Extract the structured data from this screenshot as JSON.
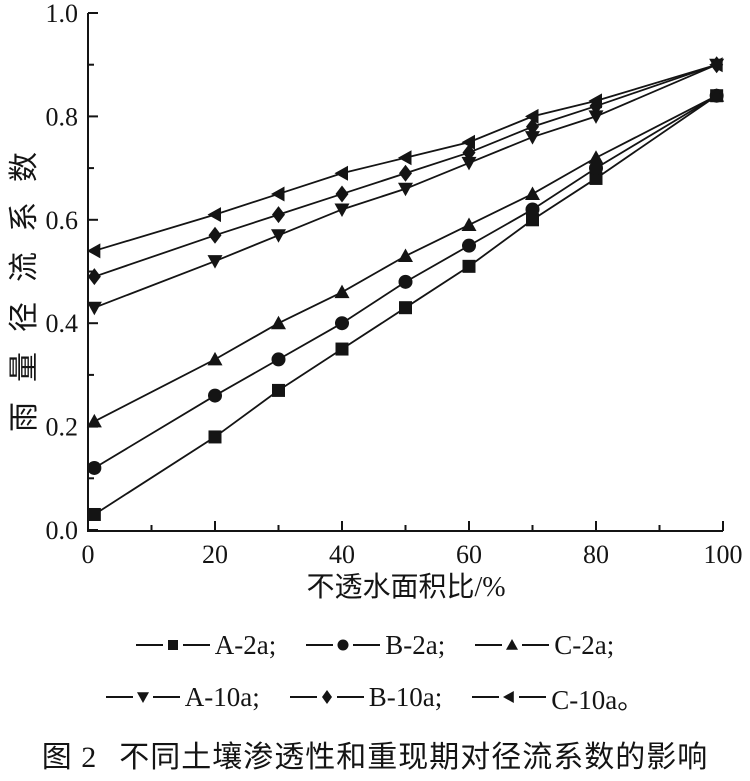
{
  "colors": {
    "ink": "#141414",
    "background": "#ffffff"
  },
  "chart_data": {
    "type": "line",
    "title": "",
    "xlabel": "不透水面积比/%",
    "ylabel": "雨量径流系数",
    "xlim": [
      0,
      100
    ],
    "ylim": [
      0.0,
      1.0
    ],
    "grid": false,
    "legend_position": "below",
    "x_major_ticks": [
      0,
      20,
      40,
      60,
      80,
      100
    ],
    "x_minor_ticks": [
      10,
      30,
      50,
      70,
      90
    ],
    "y_major_ticks": [
      0.0,
      0.2,
      0.4,
      0.6,
      0.8,
      1.0
    ],
    "y_minor_ticks": [
      0.1,
      0.3,
      0.5,
      0.7,
      0.9
    ],
    "x": [
      1,
      20,
      30,
      40,
      50,
      60,
      70,
      80,
      99
    ],
    "series": [
      {
        "name": "A-2a",
        "marker": "square",
        "values": [
          0.03,
          0.18,
          0.27,
          0.35,
          0.43,
          0.51,
          0.6,
          0.68,
          0.84
        ]
      },
      {
        "name": "B-2a",
        "marker": "circle",
        "values": [
          0.12,
          0.26,
          0.33,
          0.4,
          0.48,
          0.55,
          0.62,
          0.7,
          0.84
        ]
      },
      {
        "name": "C-2a",
        "marker": "triangle-up",
        "values": [
          0.21,
          0.33,
          0.4,
          0.46,
          0.53,
          0.59,
          0.65,
          0.72,
          0.84
        ]
      },
      {
        "name": "A-10a",
        "marker": "triangle-down",
        "values": [
          0.43,
          0.52,
          0.57,
          0.62,
          0.66,
          0.71,
          0.76,
          0.8,
          0.9
        ]
      },
      {
        "name": "B-10a",
        "marker": "diamond",
        "values": [
          0.49,
          0.57,
          0.61,
          0.65,
          0.69,
          0.73,
          0.78,
          0.82,
          0.9
        ]
      },
      {
        "name": "C-10a",
        "marker": "triangle-left",
        "values": [
          0.54,
          0.61,
          0.65,
          0.69,
          0.72,
          0.75,
          0.8,
          0.83,
          0.9
        ]
      }
    ]
  },
  "legend": {
    "rows": [
      {
        "items": [
          {
            "label": "A-2a;",
            "marker": "square"
          },
          {
            "label": "B-2a;",
            "marker": "circle"
          },
          {
            "label": "C-2a;",
            "marker": "triangle-up"
          }
        ]
      },
      {
        "items": [
          {
            "label": "A-10a;",
            "marker": "triangle-down"
          },
          {
            "label": "B-10a;",
            "marker": "diamond"
          },
          {
            "label": "C-10a。",
            "marker": "triangle-left"
          }
        ]
      }
    ]
  },
  "caption": {
    "figure_label": "图 2",
    "title": "不同土壤渗透性和重现期对径流系数的影响"
  }
}
